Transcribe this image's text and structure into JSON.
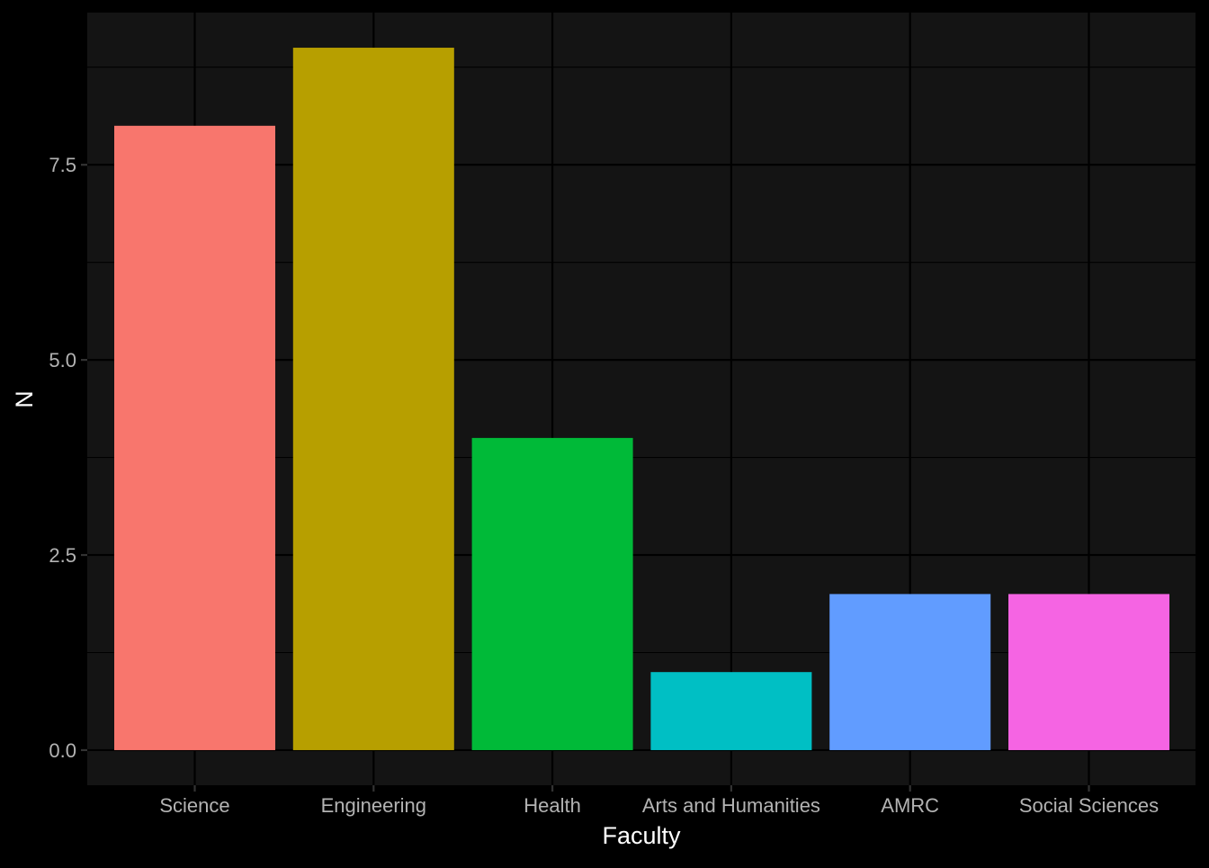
{
  "chart_data": {
    "type": "bar",
    "xlabel": "Faculty",
    "ylabel": "N",
    "categories": [
      "Science",
      "Engineering",
      "Health",
      "Arts and Humanities",
      "AMRC",
      "Social Sciences"
    ],
    "values": [
      8,
      9,
      4,
      1,
      2,
      2
    ],
    "bar_colors": [
      "#F8766D",
      "#B79F00",
      "#00BA38",
      "#00BFC4",
      "#619CFF",
      "#F564E3"
    ],
    "yticks": [
      "0.0",
      "2.5",
      "5.0",
      "7.5"
    ],
    "ytick_values": [
      0,
      2.5,
      5,
      7.5
    ],
    "ylim": [
      -0.45,
      9.45
    ],
    "grid": true,
    "legend": "none"
  },
  "colors": {
    "background": "#000000",
    "panel": "#141414",
    "grid": "#000000",
    "tick_text": "#B3B3B3",
    "axis_title": "#FFFFFF"
  }
}
